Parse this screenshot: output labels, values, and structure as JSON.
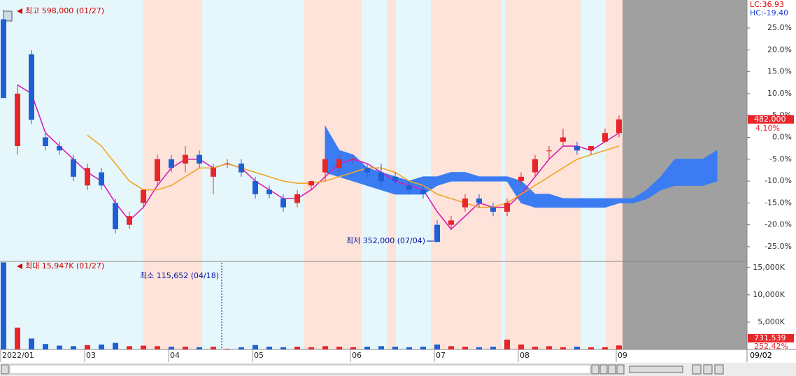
{
  "chart_data": [
    {
      "type": "candlestick",
      "categories": [
        "2022/01",
        null,
        null,
        null,
        null,
        null,
        "03",
        null,
        null,
        null,
        null,
        null,
        "04",
        null,
        null,
        null,
        null,
        null,
        "05",
        null,
        null,
        null,
        null,
        null,
        null,
        "06",
        null,
        null,
        null,
        null,
        null,
        "07",
        null,
        null,
        null,
        null,
        null,
        "08",
        null,
        null,
        null,
        null,
        null,
        null,
        "09",
        null,
        null,
        null,
        null,
        null,
        null,
        null
      ],
      "open": [
        27,
        -2,
        19,
        0,
        -2,
        -5,
        -11,
        -8,
        -15,
        -20,
        -15,
        -10,
        -5,
        -6,
        -4,
        -9,
        -6,
        -6,
        -10,
        -12,
        -14,
        -15,
        -11,
        -8,
        -7,
        -5,
        -7,
        -8,
        -9,
        -11,
        -12,
        -20,
        -20,
        -16,
        -14,
        -16,
        -17,
        -10,
        -8,
        -3,
        -1,
        -2,
        -3,
        -1,
        1,
        null,
        null,
        null,
        null,
        null,
        null,
        null
      ],
      "high": [
        29.2,
        12,
        20,
        1,
        -1,
        -4,
        -6,
        -7,
        -14,
        -17,
        -12,
        -4,
        -4,
        -2,
        -3,
        -6,
        -5,
        -5,
        -9,
        -11,
        -13,
        -12,
        -10,
        -4,
        -4,
        -4,
        -6,
        -6,
        -8,
        -10,
        -11,
        -19,
        -18,
        -13,
        -13,
        -15,
        -14,
        -8,
        -4,
        -2,
        2,
        -1,
        -2,
        2,
        5,
        null,
        null,
        null,
        null,
        null,
        null,
        null
      ],
      "low": [
        9,
        -4,
        3,
        -3,
        -4,
        -10,
        -12,
        -12,
        -22,
        -21,
        -16,
        -11,
        -8,
        -8,
        -7,
        -13,
        -7,
        -9,
        -14,
        -14,
        -17,
        -16,
        -12,
        -10,
        -8,
        -6,
        -9,
        -11,
        -11,
        -13,
        -14,
        -24,
        -21,
        -17,
        -16,
        -18,
        -18,
        -11,
        -9,
        -5,
        -2,
        -4,
        -4,
        -1,
        0,
        null,
        null,
        null,
        null,
        null,
        null,
        null
      ],
      "close": [
        9,
        10,
        4,
        -2,
        -3,
        -9,
        -7,
        -11,
        -21,
        -18,
        -12,
        -5,
        -7,
        -4,
        -6,
        -7,
        -6,
        -8,
        -13,
        -13,
        -16,
        -13,
        -10,
        -5,
        -5,
        -5,
        -8,
        -10,
        -10,
        -12,
        -13,
        -23.9,
        -19,
        -14,
        -15,
        -17,
        -15,
        -9,
        -5,
        -3,
        0,
        -3,
        -2,
        1,
        4.1,
        null,
        null,
        null,
        null,
        null,
        null,
        null
      ],
      "up_color": "#e8262a",
      "down_color": "#1f5fd6",
      "lines": [
        {
          "color": "#d81fb4",
          "values": [
            null,
            12,
            10,
            1,
            -2,
            -5,
            -8,
            -10,
            -15,
            -19,
            -16,
            -11,
            -7,
            -5,
            -5,
            -7,
            -6,
            -7,
            -10,
            -12,
            -14,
            -14,
            -12,
            -9,
            -6,
            -5,
            -6,
            -8,
            -10,
            -11,
            -12,
            -17,
            -21,
            -18,
            -15,
            -16,
            -16,
            -13,
            -9,
            -5,
            -2,
            -2,
            -3,
            -1,
            1,
            null,
            null,
            null,
            null,
            null,
            null,
            null
          ]
        },
        {
          "color": "#f0a623",
          "values": [
            null,
            null,
            null,
            null,
            null,
            null,
            0.5,
            -2,
            -6,
            -10,
            -12,
            -12,
            -11,
            -9,
            -7,
            -7,
            -6,
            -7,
            -8,
            -9,
            -10,
            -10.5,
            -10.5,
            -10,
            -9,
            -8,
            -7,
            -7,
            -8,
            -10,
            -11,
            -13,
            -14,
            -15,
            -16,
            -16,
            -15,
            -13,
            -11,
            -9,
            -7,
            -5,
            -4,
            -3,
            -2,
            null,
            null,
            null,
            null,
            null,
            null,
            null
          ]
        }
      ],
      "cloud": {
        "color": "#3b7cf2",
        "upper": [
          null,
          null,
          null,
          null,
          null,
          null,
          null,
          null,
          null,
          null,
          null,
          null,
          null,
          null,
          null,
          null,
          null,
          null,
          null,
          null,
          null,
          null,
          null,
          2.5,
          -3,
          -4,
          -7,
          -8,
          -9,
          -10,
          -9,
          -9,
          -8,
          -8,
          -9,
          -9,
          -9,
          -10,
          -13,
          -13,
          -14,
          -14,
          -14,
          -14,
          -14,
          -14,
          -12,
          -9,
          -5,
          -5,
          -5,
          -3
        ],
        "lower": [
          null,
          null,
          null,
          null,
          null,
          null,
          null,
          null,
          null,
          null,
          null,
          null,
          null,
          null,
          null,
          null,
          null,
          null,
          null,
          null,
          null,
          null,
          null,
          -8,
          -9,
          -10,
          -11,
          -12,
          -13,
          -13,
          -13,
          -11,
          -10,
          -10,
          -10,
          -10,
          -10,
          -15,
          -16,
          -16,
          -16,
          -16,
          -16,
          -16,
          -15,
          -15,
          -14,
          -12,
          -11,
          -11,
          -11,
          -10
        ]
      },
      "ylim": [
        -28.2,
        31.4
      ],
      "yticks": [
        {
          "value": 25,
          "label": "25.0%"
        },
        {
          "value": 20,
          "label": "20.0%"
        },
        {
          "value": 15,
          "label": "15.0%"
        },
        {
          "value": 10,
          "label": "10.0%"
        },
        {
          "value": 5,
          "label": "5.0%"
        },
        {
          "value": 0,
          "label": "0.0%"
        },
        {
          "value": -5,
          "label": "-5.0%"
        },
        {
          "value": -10,
          "label": "-10.0%"
        },
        {
          "value": -15,
          "label": "-15.0%"
        },
        {
          "value": -20,
          "label": "-20.0%"
        },
        {
          "value": -25,
          "label": "-25.0%"
        }
      ],
      "max_label": "최고 598,000 (01/27)",
      "min_label": "최저 352,000 (07/04)",
      "lc_label": "LC:36.93",
      "hc_label": "HC:-19.40",
      "last_price": "482,000",
      "last_change": "4.10%"
    },
    {
      "type": "bar",
      "values": [
        15947,
        4000,
        2000,
        1000,
        700,
        600,
        800,
        900,
        1200,
        600,
        700,
        600,
        500,
        500,
        400,
        500,
        115.652,
        400,
        800,
        500,
        400,
        500,
        400,
        600,
        500,
        400,
        500,
        600,
        500,
        400,
        500,
        900,
        600,
        500,
        400,
        500,
        1800,
        900,
        500,
        600,
        400,
        500,
        400,
        400,
        731.539,
        null,
        null,
        null,
        null,
        null,
        null,
        null
      ],
      "ylim": [
        0,
        16000
      ],
      "yticks": [
        {
          "value": 15000,
          "label": "15,000K"
        },
        {
          "value": 10000,
          "label": "10,000K"
        },
        {
          "value": 5000,
          "label": "5,000K"
        }
      ],
      "max_label": "최대 15,947K (01/27)",
      "min_label": "최소 115,652 (04/18)",
      "last_value": "731,539",
      "last_ratio": "252.42%"
    }
  ],
  "current_date": "09/02"
}
